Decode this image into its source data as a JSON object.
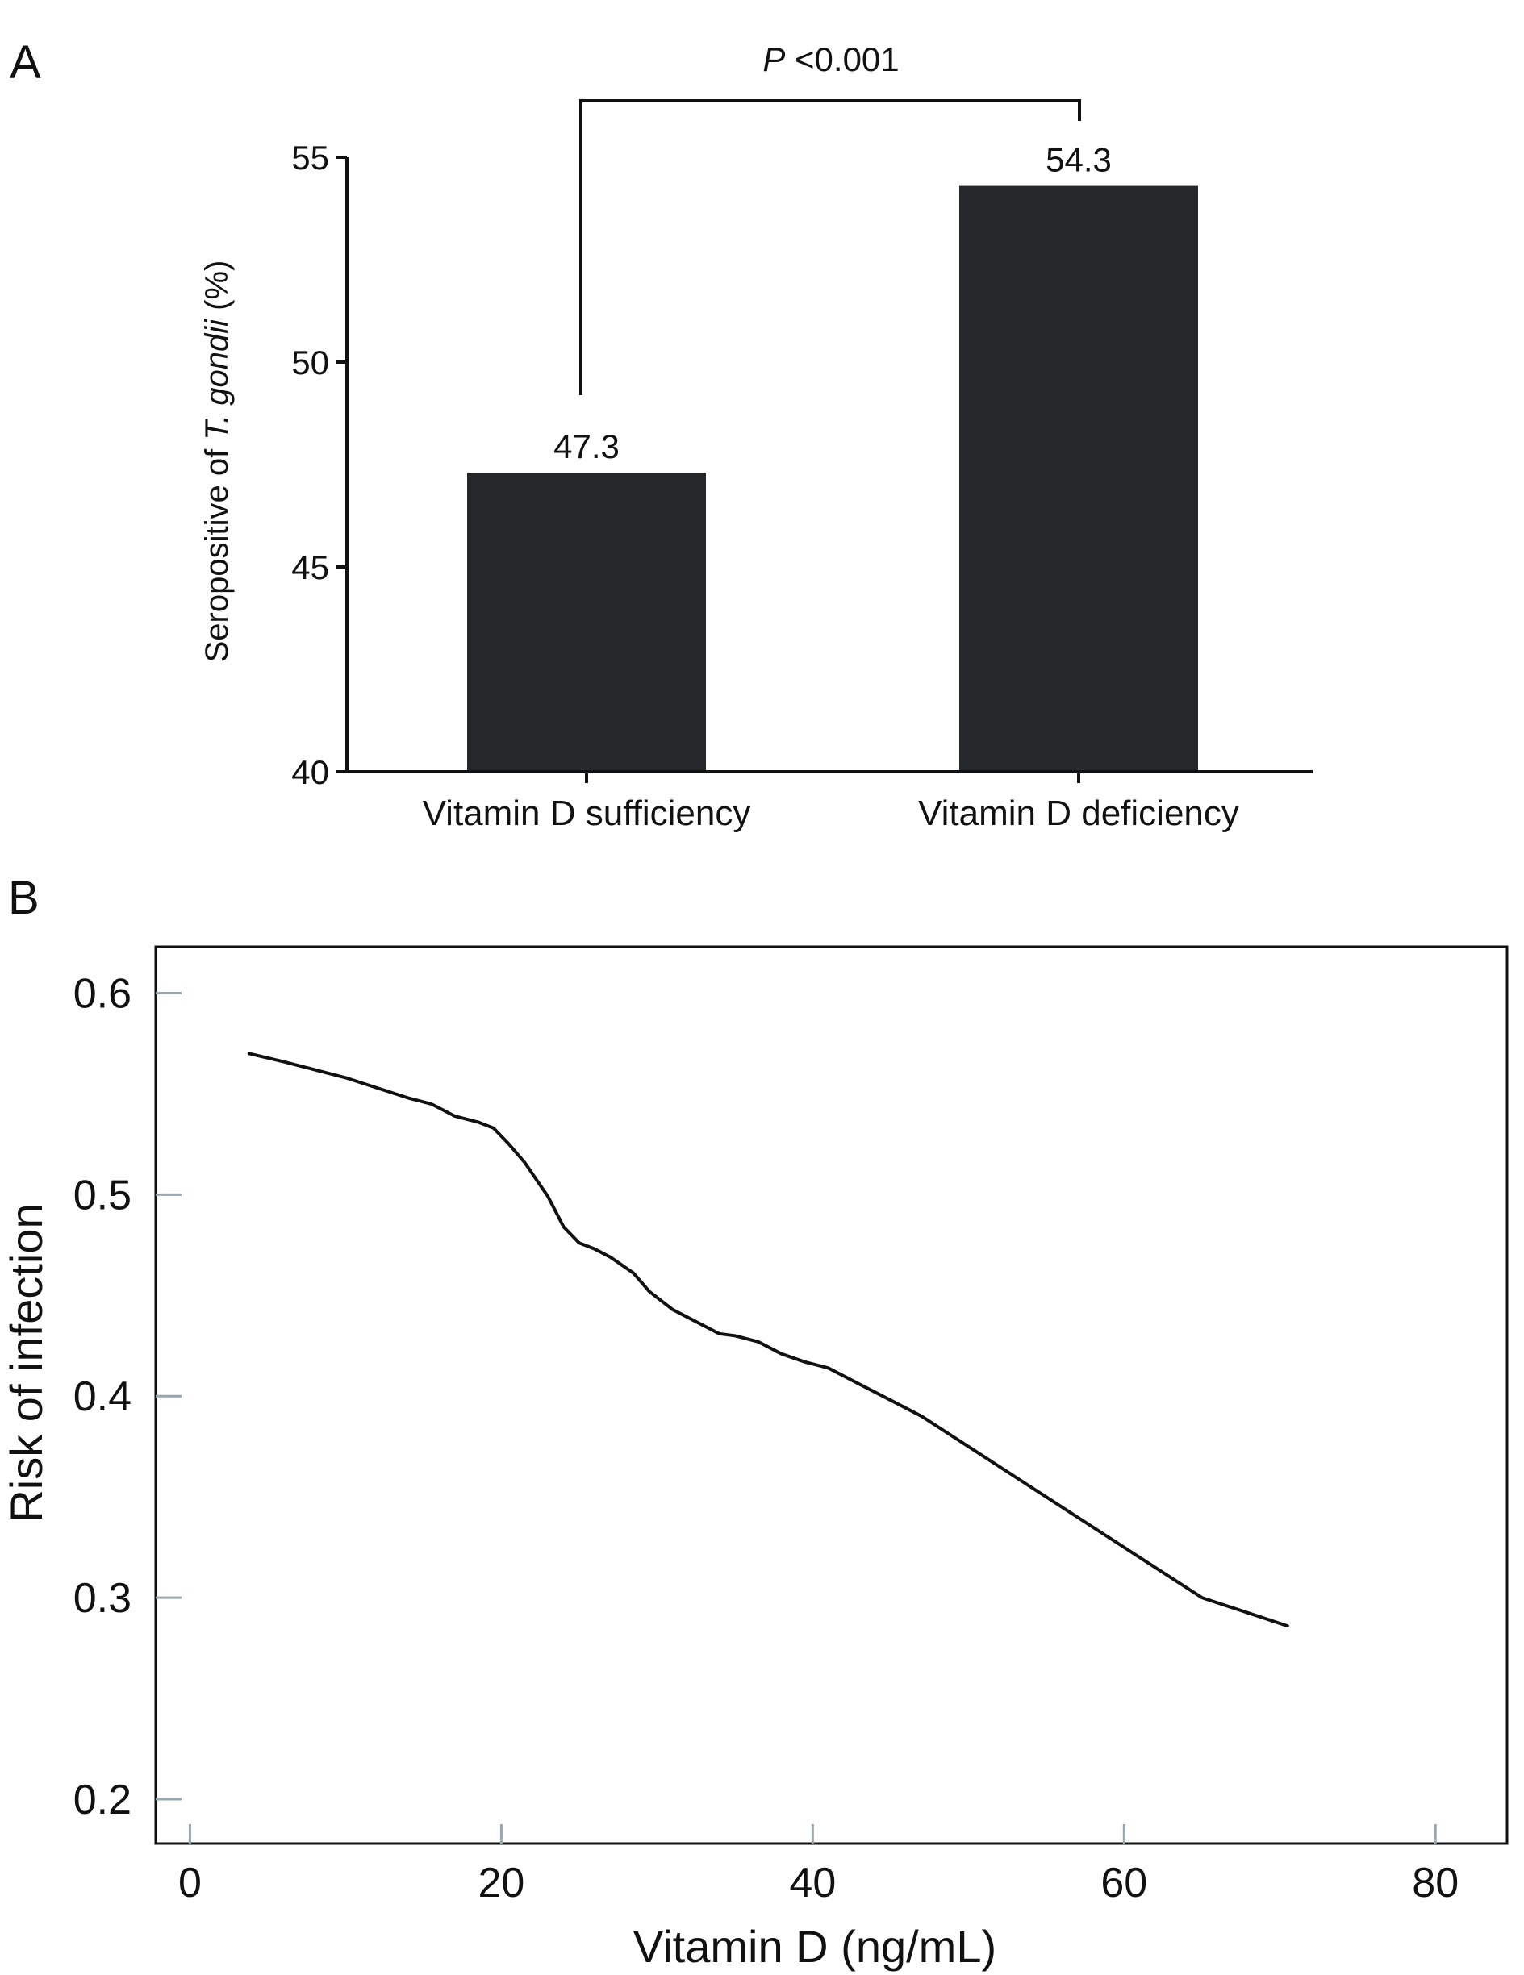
{
  "panels": [
    {
      "label": "A"
    },
    {
      "label": "B"
    }
  ],
  "significance": {
    "p_symbol": "P",
    "p_text": "<0.001"
  },
  "chart_data": [
    {
      "type": "bar",
      "panel": "A",
      "title": "",
      "categories": [
        "Vitamin D sufficiency",
        "Vitamin D deficiency"
      ],
      "values": [
        47.3,
        54.3
      ],
      "value_labels": [
        "47.3",
        "54.3"
      ],
      "xlabel": "",
      "ylabel": {
        "prefix": "Seropositive of ",
        "italic": "T. gondii",
        "suffix": " (%)"
      },
      "ylim": [
        40,
        55
      ],
      "yticks": [
        40,
        45,
        50,
        55
      ],
      "ytick_labels": [
        "40",
        "45",
        "50",
        "55"
      ],
      "bar_color": "#25282a",
      "grid": false
    },
    {
      "type": "line",
      "panel": "B",
      "title": "",
      "xlabel": "Vitamin D (ng/mL)",
      "ylabel": "Risk of infection",
      "xlim": [
        -2.2,
        84.6
      ],
      "ylim": [
        0.178,
        0.623
      ],
      "xticks": [
        0,
        20,
        40,
        60,
        80
      ],
      "xtick_labels": [
        "0",
        "20",
        "40",
        "60",
        "80"
      ],
      "yticks": [
        0.2,
        0.3,
        0.4,
        0.5,
        0.6
      ],
      "ytick_labels": [
        "0.2",
        "0.3",
        "0.4",
        "0.5",
        "0.6"
      ],
      "series": [
        {
          "x": [
            3.8,
            6,
            8,
            10,
            12,
            14,
            15.5,
            17,
            18.5,
            19.5,
            20.5,
            21.5,
            23,
            24,
            25,
            26,
            27,
            28.5,
            29.5,
            31,
            32.5,
            34,
            35,
            36.5,
            38,
            39.5,
            41,
            43,
            45,
            47,
            50,
            55,
            60,
            65,
            70.5
          ],
          "y": [
            0.57,
            0.566,
            0.562,
            0.558,
            0.553,
            0.548,
            0.545,
            0.539,
            0.536,
            0.533,
            0.525,
            0.516,
            0.499,
            0.484,
            0.476,
            0.473,
            0.469,
            0.461,
            0.452,
            0.443,
            0.437,
            0.431,
            0.43,
            0.427,
            0.421,
            0.417,
            0.414,
            0.406,
            0.398,
            0.39,
            0.375,
            0.35,
            0.325,
            0.3,
            0.286
          ],
          "color": "#111111"
        }
      ],
      "grid": false,
      "tick_color": "#9aa6ad"
    }
  ]
}
